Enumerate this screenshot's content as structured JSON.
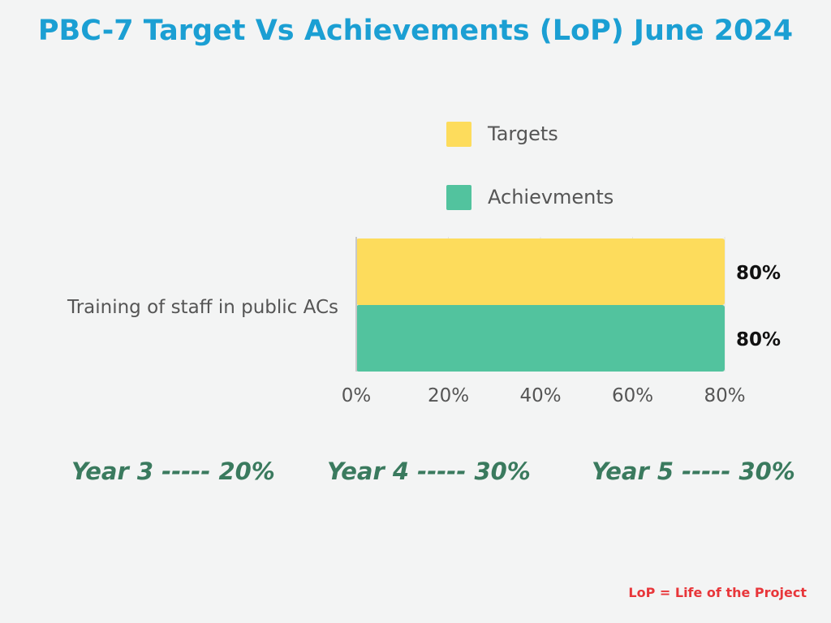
{
  "title": "PBC-7 Target Vs Achievements (LoP) June 2024",
  "chart_data": {
    "type": "bar",
    "orientation": "horizontal",
    "categories": [
      "Training of staff in public ACs"
    ],
    "series": [
      {
        "name": "Targets",
        "values": [
          80
        ],
        "color": "#fddc5c"
      },
      {
        "name": "Achievments",
        "values": [
          80
        ],
        "color": "#52c39e"
      }
    ],
    "value_labels": [
      "80%",
      "80%"
    ],
    "xlim": [
      0,
      80
    ],
    "xticks": [
      0,
      20,
      40,
      60,
      80
    ],
    "xtick_labels": [
      "0%",
      "20%",
      "40%",
      "60%",
      "80%"
    ],
    "legend_position": "top-right",
    "grid": false
  },
  "years": [
    {
      "text": "Year 3 ----- 20%"
    },
    {
      "text": "Year 4 ----- 30%"
    },
    {
      "text": "Year 5 ----- 30%"
    }
  ],
  "note": "LoP = Life of the Project"
}
